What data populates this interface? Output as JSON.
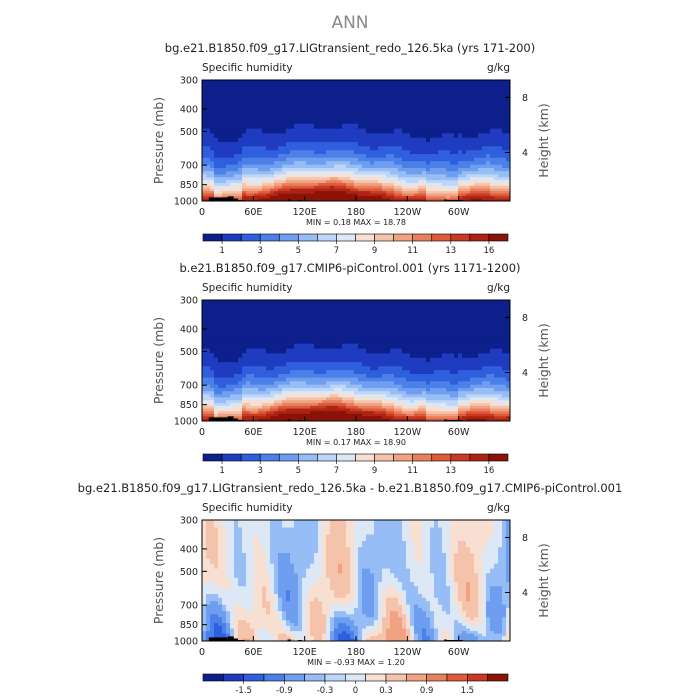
{
  "figure_title": "ANN",
  "chart_data": [
    {
      "type": "heatmap",
      "title": "bg.e21.B1850.f09_g17.LIGtransient_redo_126.5ka (yrs 171-200)",
      "subtitle_left": "Specific humidity",
      "units": "g/kg",
      "ylabel": "Pressure (mb)",
      "ylabel_right": "Height (km)",
      "x_ticks": [
        "0",
        "60E",
        "120E",
        "180",
        "120W",
        "60W"
      ],
      "y_ticks": [
        "300",
        "400",
        "500",
        "700",
        "850",
        "1000"
      ],
      "y_right_ticks": [
        "8",
        "4"
      ],
      "ylim": [
        1000,
        300
      ],
      "min_max_text": "MIN =     0.18   MAX =    18.78",
      "min": 0.18,
      "max": 18.78,
      "colorbar_labels": [
        "1",
        "3",
        "5",
        "7",
        "9",
        "11",
        "13",
        "16"
      ],
      "colorbar_colors": [
        "#0d1f8a",
        "#1f3bc0",
        "#2f5fdc",
        "#4a80e8",
        "#6f9ef0",
        "#96bdf5",
        "#bdd6f8",
        "#dce8f6",
        "#f7dfd2",
        "#f5c3ab",
        "#f0a282",
        "#e8805d",
        "#dd5a3b",
        "#c93a22",
        "#ad2414",
        "#8a1206"
      ]
    },
    {
      "type": "heatmap",
      "title": "b.e21.B1850.f09_g17.CMIP6-piControl.001 (yrs 1171-1200)",
      "subtitle_left": "Specific humidity",
      "units": "g/kg",
      "ylabel": "Pressure (mb)",
      "ylabel_right": "Height (km)",
      "x_ticks": [
        "0",
        "60E",
        "120E",
        "180",
        "120W",
        "60W"
      ],
      "y_ticks": [
        "300",
        "400",
        "500",
        "700",
        "850",
        "1000"
      ],
      "y_right_ticks": [
        "8",
        "4"
      ],
      "ylim": [
        1000,
        300
      ],
      "min_max_text": "MIN =     0.17   MAX =    18.90",
      "min": 0.17,
      "max": 18.9,
      "colorbar_labels": [
        "1",
        "3",
        "5",
        "7",
        "9",
        "11",
        "13",
        "16"
      ],
      "colorbar_colors": [
        "#0d1f8a",
        "#1f3bc0",
        "#2f5fdc",
        "#4a80e8",
        "#6f9ef0",
        "#96bdf5",
        "#bdd6f8",
        "#dce8f6",
        "#f7dfd2",
        "#f5c3ab",
        "#f0a282",
        "#e8805d",
        "#dd5a3b",
        "#c93a22",
        "#ad2414",
        "#8a1206"
      ]
    },
    {
      "type": "heatmap",
      "title": "bg.e21.B1850.f09_g17.LIGtransient_redo_126.5ka - b.e21.B1850.f09_g17.CMIP6-piControl.001",
      "subtitle_left": "Specific humidity",
      "units": "g/kg",
      "ylabel": "Pressure (mb)",
      "ylabel_right": "Height (km)",
      "x_ticks": [
        "0",
        "60E",
        "120E",
        "180",
        "120W",
        "60W"
      ],
      "y_ticks": [
        "300",
        "400",
        "500",
        "700",
        "850",
        "1000"
      ],
      "y_right_ticks": [
        "8",
        "4"
      ],
      "ylim": [
        1000,
        300
      ],
      "min_max_text": "MIN =    -0.93   MAX =     1.20",
      "min": -0.93,
      "max": 1.2,
      "colorbar_labels": [
        "-1.5",
        "-0.9",
        "-0.3",
        "0",
        "0.3",
        "0.9",
        "1.5"
      ],
      "colorbar_colors": [
        "#0d1f8a",
        "#1f3bc0",
        "#2f5fdc",
        "#4a80e8",
        "#6f9ef0",
        "#96bdf5",
        "#bdd6f8",
        "#dce8f6",
        "#f7dfd2",
        "#f5c3ab",
        "#f0a282",
        "#e8805d",
        "#dd5a3b",
        "#c93a22",
        "#8a1206"
      ]
    }
  ]
}
